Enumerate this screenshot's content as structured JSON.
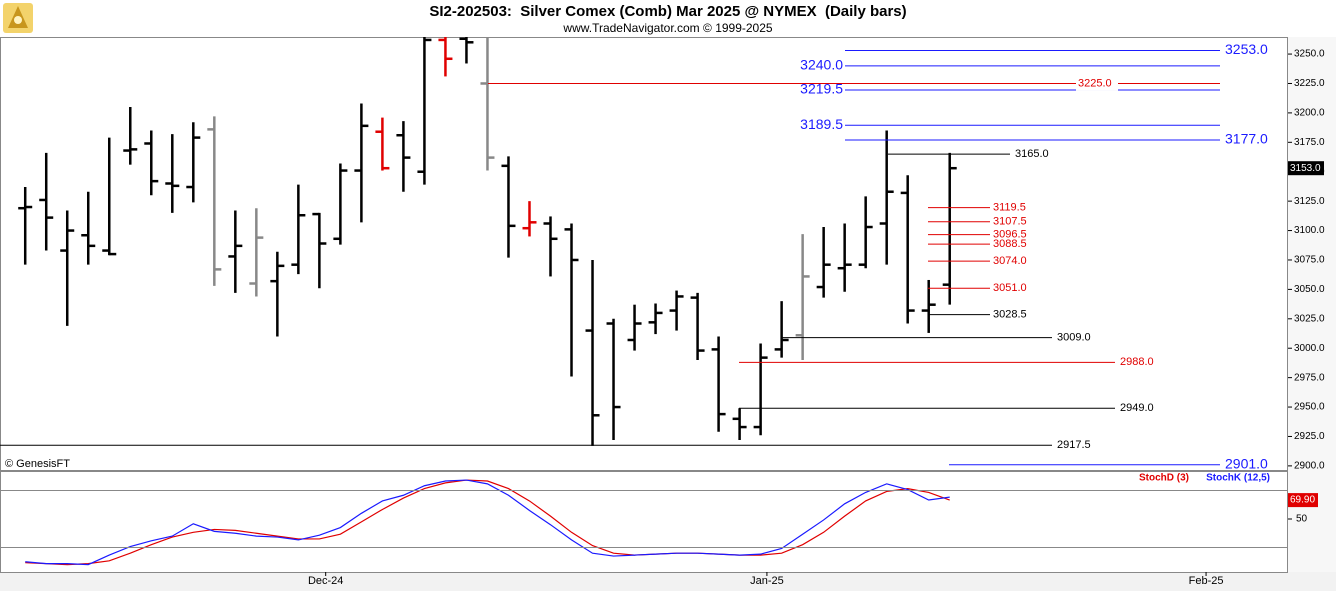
{
  "chart_data": [
    {
      "type": "ohlc",
      "title": "SI2-202503:  Silver Comex (Comb) Mar 2025 @ NYMEX  (Daily bars)",
      "subtitle": "www.TradeNavigator.com © 1999-2025",
      "watermark": "© GenesisFT",
      "open": [
        3119,
        3126,
        3083,
        3096,
        3083,
        3168,
        3174,
        3140,
        3137,
        3186,
        3078,
        3055,
        3057,
        3071,
        3114,
        3093,
        3151,
        3184,
        3181,
        3150,
        3262,
        3263,
        3225,
        3155,
        3102,
        3106,
        3101,
        3015,
        3021,
        3007,
        3022,
        3032,
        3043,
        2999,
        2940,
        2933,
        2999,
        3011,
        3052,
        3068,
        3071,
        3106,
        3132,
        3032,
        3054
      ],
      "high": [
        3137,
        3166,
        3117,
        3133,
        3179,
        3205,
        3185,
        3182,
        3192,
        3197,
        3117,
        3119,
        3082,
        3139,
        3115,
        3157,
        3208,
        3196,
        3193,
        3275,
        3268,
        3275,
        3280,
        3163,
        3125,
        3112,
        3106,
        3075,
        3025,
        3037,
        3038,
        3049,
        3047,
        3010,
        2949,
        3004,
        3040,
        3097,
        3103,
        3106,
        3129,
        3185,
        3147,
        3058,
        3166
      ],
      "low": [
        3071,
        3083,
        3019,
        3071,
        3079,
        3156,
        3130,
        3115,
        3124,
        3053,
        3047,
        3044,
        3010,
        3063,
        3051,
        3088,
        3107,
        3151,
        3133,
        3139,
        3231,
        3242,
        3151,
        3077,
        3095,
        3061,
        2976,
        2917,
        2922,
        2998,
        3012,
        3015,
        2990,
        2929,
        2922,
        2926,
        2992,
        2990,
        3043,
        3048,
        3068,
        3071,
        3021,
        3013,
        3037
      ],
      "close": [
        3120,
        3111,
        3100,
        3087,
        3080,
        3169,
        3142,
        3138,
        3179,
        3067,
        3087,
        3094,
        3070,
        3113,
        3089,
        3151,
        3189,
        3153,
        3162,
        3262,
        3246,
        3260,
        3162,
        3104,
        3107,
        3093,
        3075,
        2943,
        2950,
        3021,
        3030,
        3044,
        2998,
        2944,
        2933,
        2992,
        3007,
        3061,
        3071,
        3071,
        3103,
        3133,
        3032,
        3037,
        3153
      ],
      "bar_colors": [
        "#000000",
        "#000000",
        "#000000",
        "#000000",
        "#000000",
        "#000000",
        "#000000",
        "#000000",
        "#000000",
        "#888888",
        "#000000",
        "#888888",
        "#000000",
        "#000000",
        "#000000",
        "#000000",
        "#000000",
        "#e00000",
        "#000000",
        "#000000",
        "#e00000",
        "#000000",
        "#888888",
        "#000000",
        "#e00000",
        "#000000",
        "#000000",
        "#000000",
        "#000000",
        "#000000",
        "#000000",
        "#000000",
        "#000000",
        "#000000",
        "#000000",
        "#000000",
        "#000000",
        "#888888",
        "#000000",
        "#000000",
        "#000000",
        "#000000",
        "#000000",
        "#000000",
        "#000000"
      ],
      "ylim": [
        2896.5,
        3264.5
      ],
      "xlim": [
        -1.2,
        60.1
      ],
      "yticks": [
        {
          "value": 2900,
          "label": "2900.0"
        },
        {
          "value": 2925,
          "label": "2925.0"
        },
        {
          "value": 2950,
          "label": "2950.0"
        },
        {
          "value": 2975,
          "label": "2975.0"
        },
        {
          "value": 3000,
          "label": "3000.0"
        },
        {
          "value": 3025,
          "label": "3025.0"
        },
        {
          "value": 3050,
          "label": "3050.0"
        },
        {
          "value": 3075,
          "label": "3075.0"
        },
        {
          "value": 3100,
          "label": "3100.0"
        },
        {
          "value": 3125,
          "label": "3125.0"
        },
        {
          "value": 3150,
          "label": "3150.0"
        },
        {
          "value": 3175,
          "label": "3175.0"
        },
        {
          "value": 3200,
          "label": "3200.0"
        },
        {
          "value": 3225,
          "label": "3225.0"
        },
        {
          "value": 3250,
          "label": "3250.0"
        }
      ],
      "xticks": [
        {
          "value": 14.3,
          "label": "Dec-24"
        },
        {
          "value": 35.3,
          "label": "Jan-25"
        },
        {
          "value": 56.2,
          "label": "Feb-25"
        }
      ],
      "last_price": {
        "value": 3153,
        "label": "3153.0"
      },
      "levels": [
        {
          "value": 3253,
          "label": "3253.0",
          "color": "#1a1aff"
        },
        {
          "value": 3240,
          "label": "3240.0",
          "color": "#1a1aff"
        },
        {
          "value": 3219.5,
          "label": "3219.5",
          "color": "#1a1aff"
        },
        {
          "value": 3189.5,
          "label": "3189.5",
          "color": "#1a1aff"
        },
        {
          "value": 3177,
          "label": "3177.0",
          "color": "#1a1aff"
        },
        {
          "value": 2901,
          "label": "2901.0",
          "color": "#1a1aff"
        },
        {
          "value": 3225,
          "label": "3225.0",
          "color": "#e00000"
        },
        {
          "value": 3119.5,
          "label": "3119.5",
          "color": "#e00000"
        },
        {
          "value": 3107.5,
          "label": "3107.5",
          "color": "#e00000"
        },
        {
          "value": 3096.5,
          "label": "3096.5",
          "color": "#e00000"
        },
        {
          "value": 3088.5,
          "label": "3088.5",
          "color": "#e00000"
        },
        {
          "value": 3074,
          "label": "3074.0",
          "color": "#e00000"
        },
        {
          "value": 3051,
          "label": "3051.0",
          "color": "#e00000"
        },
        {
          "value": 2988,
          "label": "2988.0",
          "color": "#e00000"
        },
        {
          "value": 3165,
          "label": "3165.0",
          "color": "#000000"
        },
        {
          "value": 3028.5,
          "label": "3028.5",
          "color": "#000000"
        },
        {
          "value": 3009,
          "label": "3009.0",
          "color": "#000000"
        },
        {
          "value": 2949,
          "label": "2949.0",
          "color": "#000000"
        },
        {
          "value": 2917.5,
          "label": "2917.5",
          "color": "#000000"
        }
      ]
    },
    {
      "type": "line",
      "series": [
        {
          "name": "StochD (3)",
          "color": "#e00000",
          "values": [
            4,
            3,
            2,
            3,
            6,
            14,
            23,
            31,
            36,
            39,
            38,
            35,
            32,
            29,
            29,
            34,
            47,
            60,
            72,
            82,
            88,
            91,
            90,
            82,
            69,
            53,
            36,
            22,
            14,
            12,
            13,
            14,
            14,
            13,
            12,
            12,
            14,
            23,
            36,
            53,
            69,
            79,
            82,
            78,
            69.9
          ]
        },
        {
          "name": "StochK (12,5)",
          "color": "#1a1aff",
          "values": [
            5,
            3,
            3,
            2,
            12,
            21,
            27,
            32,
            45,
            37,
            35,
            32,
            31,
            28,
            33,
            41,
            56,
            69,
            75,
            85,
            90,
            91,
            87,
            75,
            59,
            44,
            28,
            14,
            11,
            12,
            13,
            14,
            14,
            13,
            12,
            13,
            19,
            34,
            49,
            66,
            78,
            87,
            81,
            70,
            73
          ]
        }
      ],
      "ylim": [
        0,
        100
      ],
      "yticks": [
        50
      ],
      "bands": [
        20,
        80
      ],
      "last_value": {
        "value": 69.9,
        "label": "69.90"
      }
    }
  ]
}
